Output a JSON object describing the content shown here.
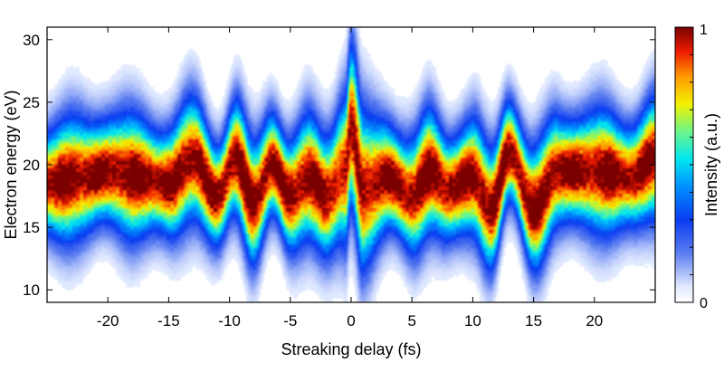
{
  "chart_data": {
    "type": "heatmap",
    "xlabel": "Streaking delay (fs)",
    "ylabel": "Electron energy (eV)",
    "xlim": [
      -25,
      25
    ],
    "ylim": [
      9,
      31
    ],
    "x_ticks": [
      -20,
      -15,
      -10,
      -5,
      0,
      5,
      10,
      15,
      20
    ],
    "x_tick_labels": [
      "-20",
      "-15",
      "-10",
      "-5",
      "0",
      "5",
      "10",
      "15",
      "20"
    ],
    "y_ticks": [
      10,
      15,
      20,
      25,
      30
    ],
    "y_tick_labels": [
      "10",
      "15",
      "20",
      "25",
      "30"
    ],
    "colorbar": {
      "label": "Intensity (a.u.)",
      "min": 0,
      "max": 1,
      "min_label": "0",
      "max_label": "1",
      "colormap": "jet"
    },
    "trace": {
      "description_points_delay_fs": [
        -25,
        -22,
        -20,
        -17.5,
        -15,
        -13,
        -11,
        -9.5,
        -8,
        -6.5,
        -5,
        -3.5,
        -2,
        -0.5,
        0,
        1,
        3,
        5,
        6.5,
        8,
        10,
        11.5,
        13,
        15,
        17,
        20,
        23,
        25
      ],
      "center_energy_eV": [
        18.5,
        19.0,
        19.5,
        19.0,
        18.5,
        20.5,
        17.5,
        20.5,
        17.0,
        20.0,
        17.5,
        19.0,
        17.5,
        19.5,
        23.0,
        18.0,
        19.0,
        17.5,
        19.5,
        18.0,
        19.0,
        16.5,
        21.0,
        16.5,
        19.5,
        19.5,
        19.0,
        20.5
      ]
    }
  }
}
